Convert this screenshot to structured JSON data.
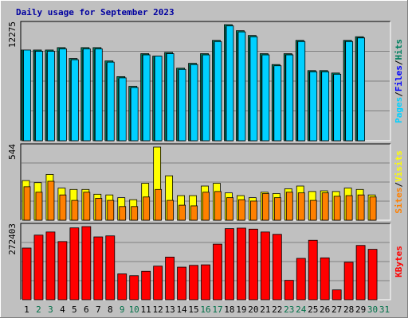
{
  "chart_data": {
    "type": "bar",
    "title": "Daily usage for September 2023",
    "categories": [
      "1",
      "2",
      "3",
      "4",
      "5",
      "6",
      "7",
      "8",
      "9",
      "10",
      "11",
      "12",
      "13",
      "14",
      "15",
      "16",
      "17",
      "18",
      "19",
      "20",
      "21",
      "22",
      "23",
      "24",
      "25",
      "26",
      "27",
      "28",
      "29",
      "30",
      "31"
    ],
    "weekend_days": [
      "2",
      "3",
      "9",
      "10",
      "16",
      "17",
      "23",
      "24",
      "30",
      "31"
    ],
    "colors": {
      "background": "#c0c0c0",
      "grid": "#808080",
      "title": "#0000a0",
      "weekday_label": "#000000",
      "weekend_label": "#007048",
      "hits": "#008060",
      "files": "#0000ff",
      "pages": "#00d0ff",
      "visits": "#ffff00",
      "sites": "#ff8000",
      "kbytes": "#ff0000"
    },
    "panels": [
      {
        "name": "hits-files-pages",
        "ymax_label": "12275",
        "right_labels": [
          "Pages",
          "Files",
          "Hits"
        ],
        "right_colors": [
          "#00d0ff",
          "#0000ff",
          "#008060"
        ],
        "series": [
          {
            "name": "Hits",
            "values": [
              7500,
              7500,
              7500,
              7700,
              6800,
              7700,
              7700,
              6600,
              5300,
              4500,
              7200,
              7000,
              7300,
              6000,
              6400,
              7200,
              8300,
              9600,
              9100,
              8700,
              7200,
              6300,
              7200,
              8300,
              5800,
              5800,
              5600,
              8300,
              8600,
              0,
              0
            ]
          },
          {
            "name": "Files",
            "values": [
              7400,
              7400,
              7200,
              7400,
              6600,
              7500,
              7500,
              6400,
              5100,
              4300,
              7100,
              6900,
              7200,
              5800,
              6200,
              7000,
              8100,
              9400,
              8900,
              8500,
              7000,
              6100,
              7100,
              8200,
              5700,
              5700,
              5400,
              8200,
              8500,
              0,
              0
            ]
          },
          {
            "name": "Pages",
            "values": [
              7500,
              7400,
              7400,
              7600,
              6700,
              7600,
              7600,
              6500,
              5200,
              4400,
              7100,
              7000,
              7200,
              5900,
              6300,
              7100,
              8200,
              9500,
              9000,
              8600,
              7100,
              6200,
              7100,
              8200,
              5700,
              5700,
              5500,
              8200,
              8500,
              0,
              0
            ]
          }
        ]
      },
      {
        "name": "visits-sites",
        "ymax_label": "544",
        "right_labels": [
          "Sites",
          "Visits"
        ],
        "right_colors": [
          "#ff8000",
          "#ffff00"
        ],
        "series": [
          {
            "name": "Visits",
            "values": [
              290,
              275,
              335,
              235,
              225,
              225,
              190,
              185,
              165,
              150,
              270,
              535,
              325,
              180,
              180,
              250,
              270,
              200,
              180,
              165,
              205,
              195,
              230,
              250,
              210,
              215,
              210,
              235,
              225,
              185,
              0
            ]
          },
          {
            "name": "Sites",
            "values": [
              245,
              205,
              285,
              185,
              145,
              205,
              160,
              145,
              100,
              100,
              170,
              225,
              145,
              110,
              105,
              205,
              210,
              165,
              150,
              140,
              195,
              165,
              205,
              200,
              145,
              200,
              175,
              180,
              185,
              170,
              0
            ]
          }
        ]
      },
      {
        "name": "kbytes",
        "ymax_label": "272403",
        "right_labels": [
          "KBytes"
        ],
        "right_colors": [
          "#ff0000"
        ],
        "series": [
          {
            "name": "KBytes",
            "values": [
              200000,
              250000,
              262000,
              225000,
              278000,
              283000,
              243000,
              247000,
              100000,
              93000,
              110000,
              130000,
              165000,
              126000,
              133000,
              135000,
              215000,
              275000,
              277000,
              273000,
              262000,
              253000,
              75000,
              160000,
              230000,
              162000,
              38000,
              145000,
              210000,
              195000,
              0
            ]
          }
        ]
      }
    ]
  }
}
